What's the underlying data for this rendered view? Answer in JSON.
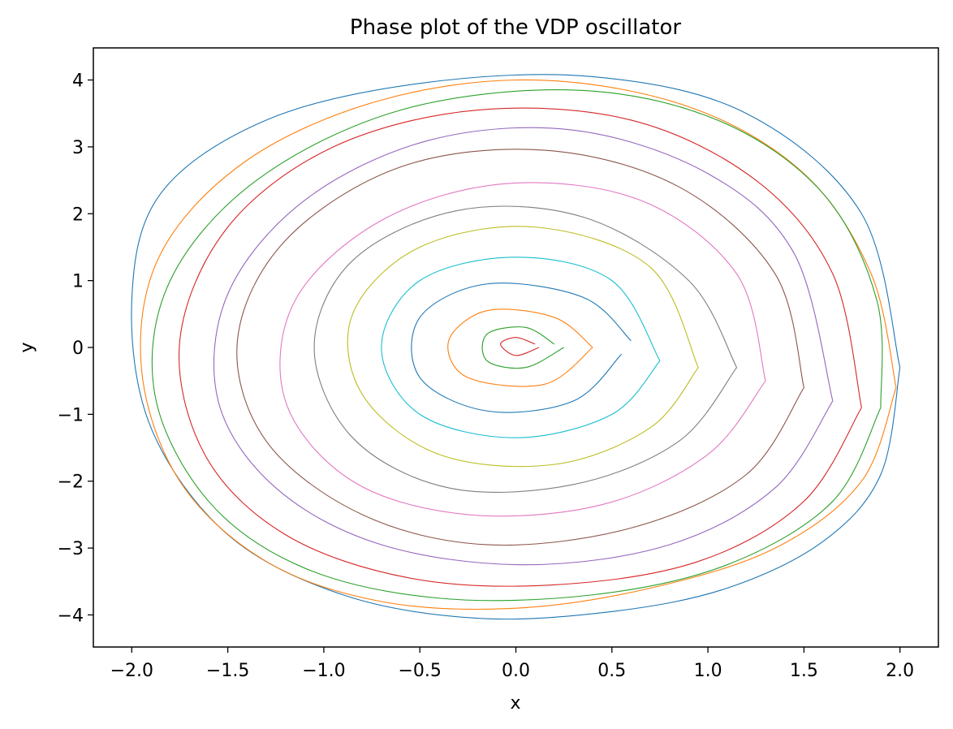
{
  "chart_data": {
    "type": "line",
    "title": "Phase plot of the VDP oscillator",
    "xlabel": "x",
    "ylabel": "y",
    "xlim": [
      -2.2,
      2.2
    ],
    "ylim": [
      -4.48,
      4.48
    ],
    "xticks": [
      -2.0,
      -1.5,
      -1.0,
      -0.5,
      0.0,
      0.5,
      1.0,
      1.5,
      2.0
    ],
    "xtick_labels": [
      "−2.0",
      "−1.5",
      "−1.0",
      "−0.5",
      "0.0",
      "0.5",
      "1.0",
      "1.5",
      "2.0"
    ],
    "yticks": [
      -4,
      -3,
      -2,
      -1,
      0,
      1,
      2,
      3,
      4
    ],
    "ytick_labels": [
      "−4",
      "−3",
      "−2",
      "−1",
      "0",
      "1",
      "2",
      "3",
      "4"
    ],
    "grid": false,
    "legend": false,
    "series_colors": [
      "#1f77b4",
      "#ff7f0e",
      "#2ca02c",
      "#d62728",
      "#9467bd",
      "#8c564b",
      "#e377c2",
      "#7f7f7f",
      "#bcbd22",
      "#17becf"
    ],
    "series": [
      {
        "color": "#1f77b4",
        "x": [
          2.0,
          1.9,
          1.6,
          1.1,
          0.5,
          -0.2,
          -0.9,
          -1.5,
          -1.9,
          -2.0,
          -1.85,
          -1.3,
          -0.5,
          0.4,
          1.2,
          1.8,
          2.0
        ],
        "y": [
          -0.3,
          -1.9,
          -2.9,
          -3.6,
          -3.95,
          -4.05,
          -3.7,
          -2.8,
          -1.2,
          0.7,
          2.3,
          3.4,
          3.95,
          4.05,
          3.5,
          2.0,
          -0.3
        ]
      },
      {
        "color": "#ff7f0e",
        "x": [
          1.98,
          1.8,
          1.35,
          0.7,
          0.0,
          -0.7,
          -1.3,
          -1.75,
          -1.95,
          -1.85,
          -1.4,
          -0.7,
          0.1,
          0.9,
          1.5,
          1.85,
          1.98
        ],
        "y": [
          -0.6,
          -2.0,
          -3.0,
          -3.6,
          -3.9,
          -3.8,
          -3.2,
          -2.0,
          -0.3,
          1.4,
          2.8,
          3.7,
          4.0,
          3.6,
          2.6,
          1.1,
          -0.6
        ]
      },
      {
        "color": "#2ca02c",
        "x": [
          1.9,
          1.65,
          1.1,
          0.4,
          -0.4,
          -1.1,
          -1.6,
          -1.88,
          -1.8,
          -1.35,
          -0.6,
          0.3,
          1.05,
          1.6,
          1.88,
          1.9
        ],
        "y": [
          -0.9,
          -2.3,
          -3.25,
          -3.7,
          -3.75,
          -3.3,
          -2.3,
          -0.7,
          1.0,
          2.5,
          3.55,
          3.85,
          3.4,
          2.3,
          0.7,
          -0.9
        ]
      },
      {
        "color": "#d62728",
        "x": [
          1.8,
          1.5,
          0.95,
          0.2,
          -0.55,
          -1.2,
          -1.62,
          -1.75,
          -1.5,
          -0.95,
          -0.2,
          0.6,
          1.25,
          1.65,
          1.8
        ],
        "y": [
          -0.9,
          -2.3,
          -3.2,
          -3.55,
          -3.45,
          -2.8,
          -1.6,
          0.1,
          1.8,
          3.0,
          3.55,
          3.4,
          2.5,
          1.1,
          -0.9
        ]
      },
      {
        "color": "#9467bd",
        "x": [
          1.65,
          1.35,
          0.8,
          0.05,
          -0.7,
          -1.25,
          -1.55,
          -1.5,
          -1.1,
          -0.45,
          0.3,
          1.0,
          1.45,
          1.65
        ],
        "y": [
          -0.8,
          -2.1,
          -2.95,
          -3.25,
          -2.95,
          -2.1,
          -0.8,
          0.8,
          2.2,
          3.1,
          3.25,
          2.6,
          1.4,
          -0.8
        ]
      },
      {
        "color": "#8c564b",
        "x": [
          1.5,
          1.2,
          0.6,
          -0.15,
          -0.8,
          -1.3,
          -1.45,
          -1.2,
          -0.6,
          0.15,
          0.85,
          1.35,
          1.5
        ],
        "y": [
          -0.6,
          -1.9,
          -2.7,
          -2.95,
          -2.5,
          -1.4,
          0.1,
          1.6,
          2.7,
          2.95,
          2.4,
          1.1,
          -0.6
        ]
      },
      {
        "color": "#e377c2",
        "x": [
          1.3,
          1.0,
          0.45,
          -0.25,
          -0.85,
          -1.2,
          -1.15,
          -0.7,
          -0.05,
          0.65,
          1.15,
          1.3
        ],
        "y": [
          -0.5,
          -1.6,
          -2.35,
          -2.5,
          -2.0,
          -0.8,
          0.7,
          1.9,
          2.45,
          2.2,
          1.1,
          -0.5
        ]
      },
      {
        "color": "#7f7f7f",
        "x": [
          1.15,
          0.85,
          0.3,
          -0.35,
          -0.85,
          -1.05,
          -0.85,
          -0.3,
          0.35,
          0.9,
          1.15
        ],
        "y": [
          -0.3,
          -1.4,
          -2.05,
          -2.1,
          -1.35,
          0.0,
          1.3,
          2.05,
          1.95,
          1.0,
          -0.3
        ]
      },
      {
        "color": "#bcbd22",
        "x": [
          0.95,
          0.7,
          0.2,
          -0.4,
          -0.8,
          -0.85,
          -0.5,
          0.1,
          0.7,
          0.95
        ],
        "y": [
          -0.3,
          -1.2,
          -1.75,
          -1.6,
          -0.7,
          0.5,
          1.5,
          1.8,
          1.2,
          -0.3
        ]
      },
      {
        "color": "#17becf",
        "x": [
          0.75,
          0.5,
          0.0,
          -0.5,
          -0.7,
          -0.5,
          0.0,
          0.5,
          0.75
        ],
        "y": [
          -0.2,
          -1.0,
          -1.35,
          -1.0,
          0.0,
          1.0,
          1.35,
          1.0,
          -0.2
        ]
      },
      {
        "color": "#1f77b4",
        "x": [
          0.55,
          0.3,
          -0.15,
          -0.5,
          -0.5,
          -0.15,
          0.35,
          0.6
        ],
        "y": [
          -0.1,
          -0.8,
          -0.95,
          -0.45,
          0.45,
          0.95,
          0.75,
          0.1
        ]
      },
      {
        "color": "#ff7f0e",
        "x": [
          0.4,
          0.15,
          -0.25,
          -0.35,
          -0.15,
          0.2,
          0.4
        ],
        "y": [
          0.0,
          -0.55,
          -0.45,
          0.1,
          0.55,
          0.45,
          0.0
        ]
      },
      {
        "color": "#2ca02c",
        "x": [
          0.25,
          0.05,
          -0.15,
          -0.15,
          0.05,
          0.2
        ],
        "y": [
          0.0,
          -0.3,
          -0.2,
          0.2,
          0.3,
          0.05
        ]
      },
      {
        "color": "#d62728",
        "x": [
          0.12,
          0.0,
          -0.08,
          0.0,
          0.1
        ],
        "y": [
          0.0,
          -0.12,
          0.05,
          0.15,
          0.05
        ]
      }
    ]
  }
}
